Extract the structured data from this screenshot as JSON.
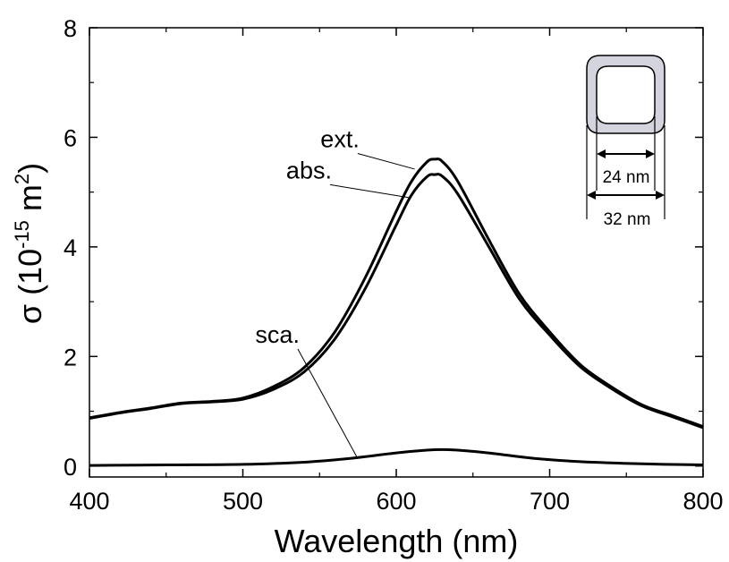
{
  "chart_data": {
    "type": "line",
    "xlabel": "Wavelength (nm)",
    "ylabel": {
      "symbol": "σ",
      "prefix": " (10",
      "exp1": "-15",
      "mid": " m",
      "exp2": "2",
      "suffix": ")"
    },
    "xlim": [
      400,
      800
    ],
    "ylim": [
      -0.2,
      8
    ],
    "xticks": [
      400,
      500,
      600,
      700,
      800
    ],
    "yticks": [
      0,
      2,
      4,
      6,
      8
    ],
    "grid": false,
    "legend": "none",
    "series": [
      {
        "name": "ext.",
        "x": [
          400,
          420,
          440,
          460,
          480,
          500,
          520,
          540,
          560,
          580,
          600,
          610,
          620,
          625,
          630,
          640,
          660,
          680,
          700,
          720,
          740,
          760,
          780,
          800
        ],
        "y": [
          0.88,
          0.98,
          1.06,
          1.15,
          1.18,
          1.24,
          1.45,
          1.8,
          2.45,
          3.45,
          4.65,
          5.2,
          5.55,
          5.6,
          5.56,
          5.2,
          4.15,
          3.15,
          2.45,
          1.85,
          1.45,
          1.12,
          0.92,
          0.72
        ]
      },
      {
        "name": "abs.",
        "x": [
          400,
          420,
          440,
          460,
          480,
          500,
          520,
          540,
          560,
          580,
          600,
          610,
          620,
          625,
          630,
          640,
          660,
          680,
          700,
          720,
          740,
          760,
          780,
          800
        ],
        "y": [
          0.87,
          0.97,
          1.05,
          1.14,
          1.17,
          1.22,
          1.4,
          1.72,
          2.32,
          3.25,
          4.4,
          4.95,
          5.28,
          5.32,
          5.29,
          4.97,
          4.02,
          3.06,
          2.39,
          1.81,
          1.42,
          1.1,
          0.9,
          0.7
        ]
      },
      {
        "name": "sca.",
        "x": [
          400,
          450,
          500,
          540,
          570,
          600,
          620,
          630,
          640,
          660,
          690,
          720,
          760,
          800
        ],
        "y": [
          0.01,
          0.02,
          0.03,
          0.07,
          0.14,
          0.24,
          0.29,
          0.3,
          0.29,
          0.24,
          0.14,
          0.08,
          0.04,
          0.02
        ]
      }
    ],
    "annotations": [
      {
        "text": "ext.",
        "x": 576,
        "y": 5.82,
        "arrow_to": [
          612,
          5.42
        ]
      },
      {
        "text": "abs.",
        "x": 558,
        "y": 5.25,
        "arrow_to": [
          608,
          4.9
        ]
      },
      {
        "text": "sca.",
        "x": 537,
        "y": 2.25,
        "arrow_to": [
          575,
          0.13
        ]
      }
    ],
    "inset": {
      "inner_size_label": "24 nm",
      "outer_size_label": "32 nm",
      "shell_color": "#d3d4de"
    }
  }
}
